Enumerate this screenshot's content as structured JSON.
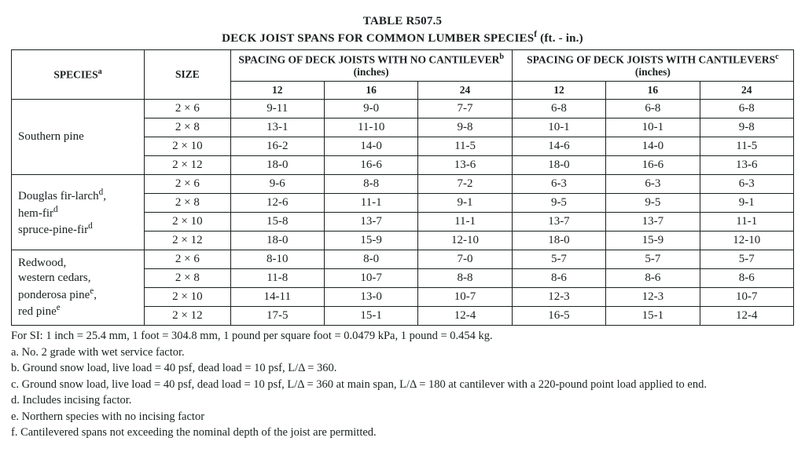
{
  "title_line1": "TABLE R507.5",
  "title_line2_pre": "DECK JOIST SPANS FOR COMMON LUMBER SPECIES",
  "title_line2_sup": "f",
  "title_line2_post": " (ft. - in.)",
  "header": {
    "species": "SPECIES",
    "species_sup": "a",
    "size": "SIZE",
    "no_cant_pre": "SPACING OF DECK JOISTS WITH NO CANTILEVER",
    "no_cant_sup": "b",
    "cant_pre": "SPACING OF DECK JOISTS WITH CANTILEVERS",
    "cant_sup": "c",
    "inches": "(inches)",
    "c12": "12",
    "c16": "16",
    "c24": "24"
  },
  "groups": [
    {
      "species_html": "Southern pine",
      "rows": [
        {
          "size": "2 × 6",
          "nc12": "9-11",
          "nc16": "9-0",
          "nc24": "7-7",
          "c12": "6-8",
          "c16": "6-8",
          "c24": "6-8"
        },
        {
          "size": "2 × 8",
          "nc12": "13-1",
          "nc16": "11-10",
          "nc24": "9-8",
          "c12": "10-1",
          "c16": "10-1",
          "c24": "9-8"
        },
        {
          "size": "2 × 10",
          "nc12": "16-2",
          "nc16": "14-0",
          "nc24": "11-5",
          "c12": "14-6",
          "c16": "14-0",
          "c24": "11-5"
        },
        {
          "size": "2 × 12",
          "nc12": "18-0",
          "nc16": "16-6",
          "nc24": "13-6",
          "c12": "18-0",
          "c16": "16-6",
          "c24": "13-6"
        }
      ]
    },
    {
      "species_html": "Douglas fir-larch<sup>d</sup>,<br>hem-fir<sup>d</sup><br>spruce-pine-fir<sup>d</sup>",
      "rows": [
        {
          "size": "2 × 6",
          "nc12": "9-6",
          "nc16": "8-8",
          "nc24": "7-2",
          "c12": "6-3",
          "c16": "6-3",
          "c24": "6-3"
        },
        {
          "size": "2 × 8",
          "nc12": "12-6",
          "nc16": "11-1",
          "nc24": "9-1",
          "c12": "9-5",
          "c16": "9-5",
          "c24": "9-1"
        },
        {
          "size": "2 × 10",
          "nc12": "15-8",
          "nc16": "13-7",
          "nc24": "11-1",
          "c12": "13-7",
          "c16": "13-7",
          "c24": "11-1"
        },
        {
          "size": "2 × 12",
          "nc12": "18-0",
          "nc16": "15-9",
          "nc24": "12-10",
          "c12": "18-0",
          "c16": "15-9",
          "c24": "12-10"
        }
      ]
    },
    {
      "species_html": "Redwood,<br>western cedars,<br>ponderosa pine<sup>e</sup>,<br>red pine<sup>e</sup>",
      "rows": [
        {
          "size": "2 × 6",
          "nc12": "8-10",
          "nc16": "8-0",
          "nc24": "7-0",
          "c12": "5-7",
          "c16": "5-7",
          "c24": "5-7"
        },
        {
          "size": "2 × 8",
          "nc12": "11-8",
          "nc16": "10-7",
          "nc24": "8-8",
          "c12": "8-6",
          "c16": "8-6",
          "c24": "8-6"
        },
        {
          "size": "2 × 10",
          "nc12": "14-11",
          "nc16": "13-0",
          "nc24": "10-7",
          "c12": "12-3",
          "c16": "12-3",
          "c24": "10-7"
        },
        {
          "size": "2 × 12",
          "nc12": "17-5",
          "nc16": "15-1",
          "nc24": "12-4",
          "c12": "16-5",
          "c16": "15-1",
          "c24": "12-4"
        }
      ]
    }
  ],
  "notes": {
    "si": "For SI: 1 inch = 25.4 mm, 1 foot = 304.8 mm, 1 pound per square foot = 0.0479 kPa, 1 pound = 0.454 kg.",
    "a": "a. No. 2 grade with wet service factor.",
    "b": "b. Ground snow load, live load = 40 psf, dead load = 10 psf, L/Δ = 360.",
    "c": "c. Ground snow load, live load = 40 psf, dead load = 10 psf, L/Δ = 360 at main span, L/Δ = 180 at cantilever with a 220-pound point load applied to end.",
    "d": "d. Includes incising factor.",
    "e": "e. Northern species with no incising factor",
    "f": "f. Cantilevered spans not exceeding the nominal depth of the joist are permitted."
  },
  "style": {
    "text_color": "#1a2020",
    "bg_color": "#ffffff",
    "border_color": "#1a2020",
    "font_family": "Times New Roman"
  }
}
